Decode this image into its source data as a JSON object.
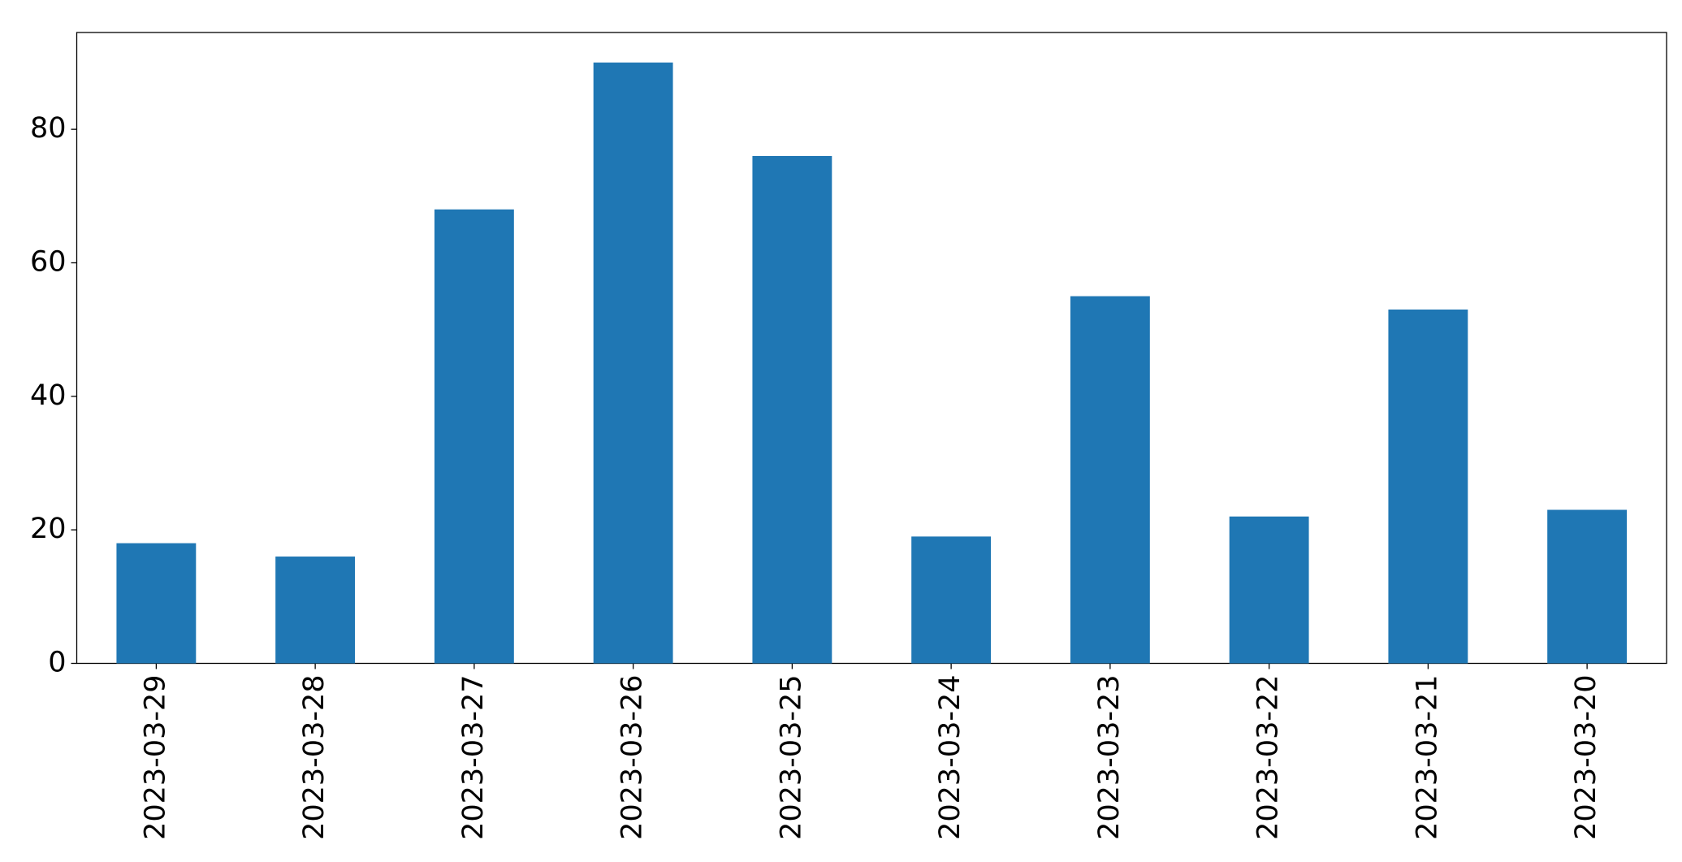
{
  "chart_data": {
    "type": "bar",
    "categories": [
      "2023-03-29",
      "2023-03-28",
      "2023-03-27",
      "2023-03-26",
      "2023-03-25",
      "2023-03-24",
      "2023-03-23",
      "2023-03-22",
      "2023-03-21",
      "2023-03-20"
    ],
    "values": [
      18,
      16,
      68,
      90,
      76,
      19,
      55,
      22,
      53,
      23
    ],
    "color": "#1f77b4",
    "ylim": [
      0,
      94.5
    ],
    "yticks": [
      0,
      20,
      40,
      60,
      80
    ],
    "grid": false
  }
}
